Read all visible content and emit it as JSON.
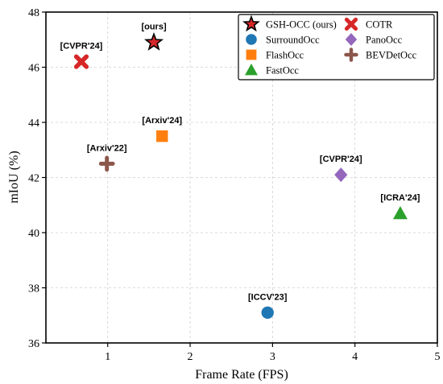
{
  "chart_data": {
    "type": "scatter",
    "title": "",
    "xlabel": "Frame Rate (FPS)",
    "ylabel": "mIoU (%)",
    "xlim": [
      0.25,
      5.0
    ],
    "ylim": [
      36.0,
      48.0
    ],
    "xticks": [
      1,
      2,
      3,
      4,
      5
    ],
    "yticks": [
      36,
      38,
      40,
      42,
      44,
      46,
      48
    ],
    "grid": true,
    "legend_position": "top-right",
    "series": [
      {
        "name": "GSH-OCC (ours)",
        "marker": "star",
        "color": "#d62728",
        "x": 1.56,
        "y": 46.9,
        "annotation": "[ours]"
      },
      {
        "name": "SurroundOcc",
        "marker": "circle",
        "color": "#1f77b4",
        "x": 2.94,
        "y": 37.1,
        "annotation": "[ICCV'23]"
      },
      {
        "name": "FlashOcc",
        "marker": "square",
        "color": "#ff7f0e",
        "x": 1.66,
        "y": 43.5,
        "annotation": "[Arxiv'24]"
      },
      {
        "name": "FastOcc",
        "marker": "triangle",
        "color": "#2ca02c",
        "x": 4.55,
        "y": 40.7,
        "annotation": "[ICRA'24]"
      },
      {
        "name": "COTR",
        "marker": "x",
        "color": "#d62728",
        "x": 0.68,
        "y": 46.2,
        "annotation": "[CVPR'24]"
      },
      {
        "name": "PanoOcc",
        "marker": "diamond",
        "color": "#9467bd",
        "x": 3.83,
        "y": 42.1,
        "annotation": "[CVPR'24]"
      },
      {
        "name": "BEVDetOcc",
        "marker": "plus",
        "color": "#8c564b",
        "x": 0.99,
        "y": 42.5,
        "annotation": "[Arxiv'22]"
      }
    ]
  }
}
